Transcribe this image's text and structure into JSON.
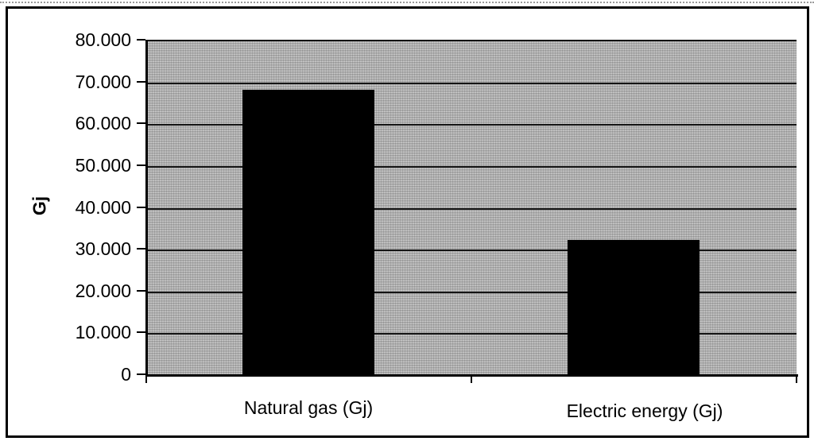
{
  "chart_data": {
    "type": "bar",
    "title": "",
    "xlabel": "",
    "ylabel": "Gj",
    "categories": [
      "Natural gas (Gj)",
      "Electric energy (Gj)"
    ],
    "values": [
      68500,
      32500
    ],
    "ylim": [
      0,
      80000
    ],
    "ytick_interval": 10000,
    "yticks": [
      {
        "value": 80000,
        "label": "80.000"
      },
      {
        "value": 70000,
        "label": "70.000"
      },
      {
        "value": 60000,
        "label": "60.000"
      },
      {
        "value": 50000,
        "label": "50.000"
      },
      {
        "value": 40000,
        "label": "40.000"
      },
      {
        "value": 30000,
        "label": "30.000"
      },
      {
        "value": 20000,
        "label": "20.000"
      },
      {
        "value": 10000,
        "label": "10.000"
      },
      {
        "value": 0,
        "label": "0"
      }
    ],
    "grid": "horizontal",
    "legend": "none",
    "colors": {
      "bar": "#000000",
      "plot_background": "#b2b2b2",
      "gridline": "#141414",
      "axis": "#000000",
      "chart_border": "#000000",
      "page_background": "#ffffff"
    }
  }
}
